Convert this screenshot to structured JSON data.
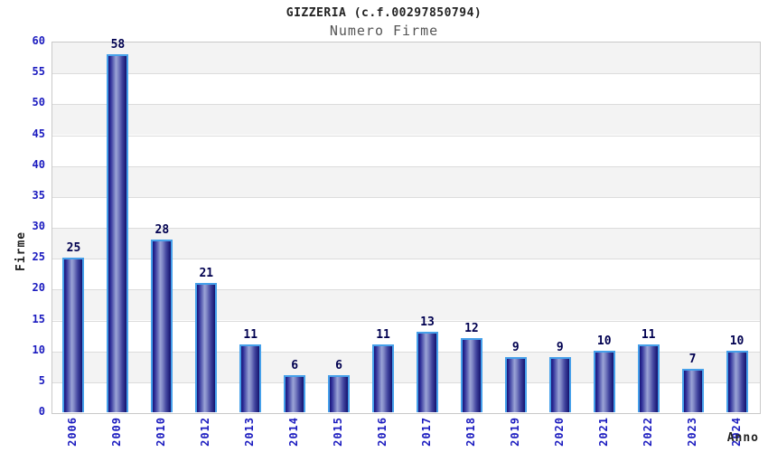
{
  "chart_data": {
    "type": "bar",
    "title": "GIZZERIA (c.f.00297850794)",
    "subtitle": "Numero Firme",
    "xlabel": "Anno",
    "ylabel": "Firme",
    "categories": [
      "2006",
      "2009",
      "2010",
      "2012",
      "2013",
      "2014",
      "2015",
      "2016",
      "2017",
      "2018",
      "2019",
      "2020",
      "2021",
      "2022",
      "2023",
      "2024"
    ],
    "values": [
      25,
      58,
      28,
      21,
      11,
      6,
      6,
      11,
      13,
      12,
      9,
      9,
      10,
      11,
      7,
      10
    ],
    "ylim": [
      0,
      60
    ],
    "ytick_step": 5,
    "grid": "horizontal-bands",
    "legend": "none",
    "colors": {
      "bar_edge": "#46a0ea",
      "bar_dark": "#14126e",
      "bar_light": "#9ba3d6",
      "tick_label": "#1a1abf",
      "value_label": "#000050",
      "band_gray": "#f3f3f3",
      "band_white": "#ffffff",
      "title": "#222222",
      "subtitle": "#555555"
    }
  }
}
